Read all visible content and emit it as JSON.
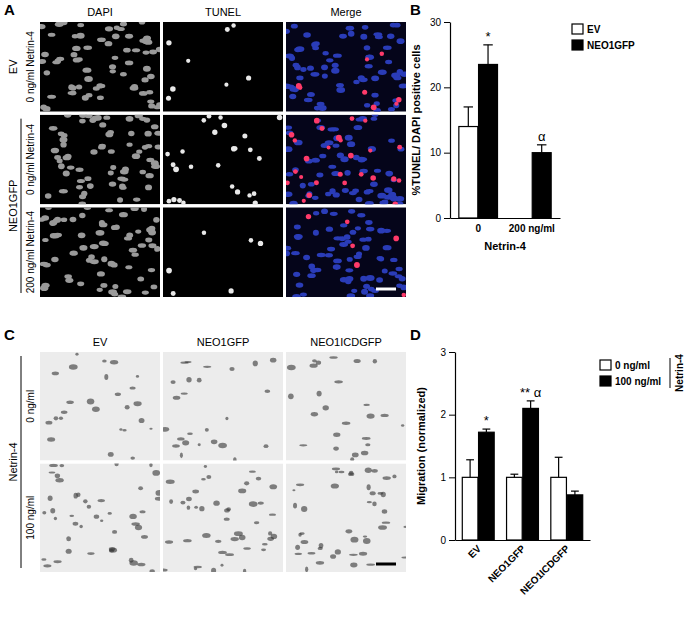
{
  "panel_labels": [
    "A",
    "B",
    "C",
    "D"
  ],
  "image_panels": [
    {
      "columns": [
        "DAPI",
        "TUNEL",
        "Merge"
      ],
      "row_groups": [
        {
          "label": "EV",
          "rows": [
            "0 ng/ml Netrin-4"
          ]
        },
        {
          "label": "NEO1GFP",
          "rows": [
            "0 ng/ml Netrin-4",
            "200 ng/ml Netrin-4"
          ]
        }
      ]
    },
    {
      "columns": [
        "EV",
        "NEO1GFP",
        "NEO1ICDGFP"
      ],
      "row_groups": [
        {
          "label": "Netrin-4",
          "rows": [
            "0 ng/ml",
            "100 ng/ml"
          ]
        }
      ]
    }
  ],
  "chart_data": [
    {
      "type": "bar",
      "x_label": "Netrin-4",
      "y_label": "%TUNEL/ DAPI positive cells",
      "categories": [
        "0",
        "200 ng/ml"
      ],
      "series": [
        {
          "name": "EV",
          "color": "#ffffff",
          "values": [
            14,
            null
          ],
          "errors": [
            3,
            null
          ]
        },
        {
          "name": "NEO1GFP",
          "color": "#000000",
          "values": [
            23.5,
            10
          ],
          "errors": [
            3,
            1.2
          ]
        }
      ],
      "ylim": [
        0,
        30
      ],
      "yticks": [
        0,
        10,
        20,
        30
      ],
      "grid": false,
      "legend": "top-right",
      "annotations": [
        {
          "category": "0",
          "series": "NEO1GFP",
          "text": "*"
        },
        {
          "category": "200 ng/ml",
          "series": "NEO1GFP",
          "text": "α"
        }
      ]
    },
    {
      "type": "bar",
      "y_label": "Migration (normalized)",
      "legend_title": "Netrin-4",
      "categories": [
        "EV",
        "NEO1GFP",
        "NEO1ICDGFP"
      ],
      "series": [
        {
          "name": "0 ng/ml",
          "color": "#ffffff",
          "values": [
            1,
            1,
            1
          ],
          "errors": [
            0.28,
            0.05,
            0.32
          ]
        },
        {
          "name": "100 ng/ml",
          "color": "#000000",
          "values": [
            1.72,
            2.1,
            0.72
          ],
          "errors": [
            0.05,
            0.12,
            0.06
          ]
        }
      ],
      "ylim": [
        0,
        3
      ],
      "yticks": [
        0,
        1,
        2,
        3
      ],
      "grid": false,
      "legend": "top-right",
      "annotations": [
        {
          "category": "EV",
          "series": "100 ng/ml",
          "text": "*"
        },
        {
          "category": "NEO1GFP",
          "series": "100 ng/ml",
          "text": "** α"
        }
      ]
    }
  ]
}
